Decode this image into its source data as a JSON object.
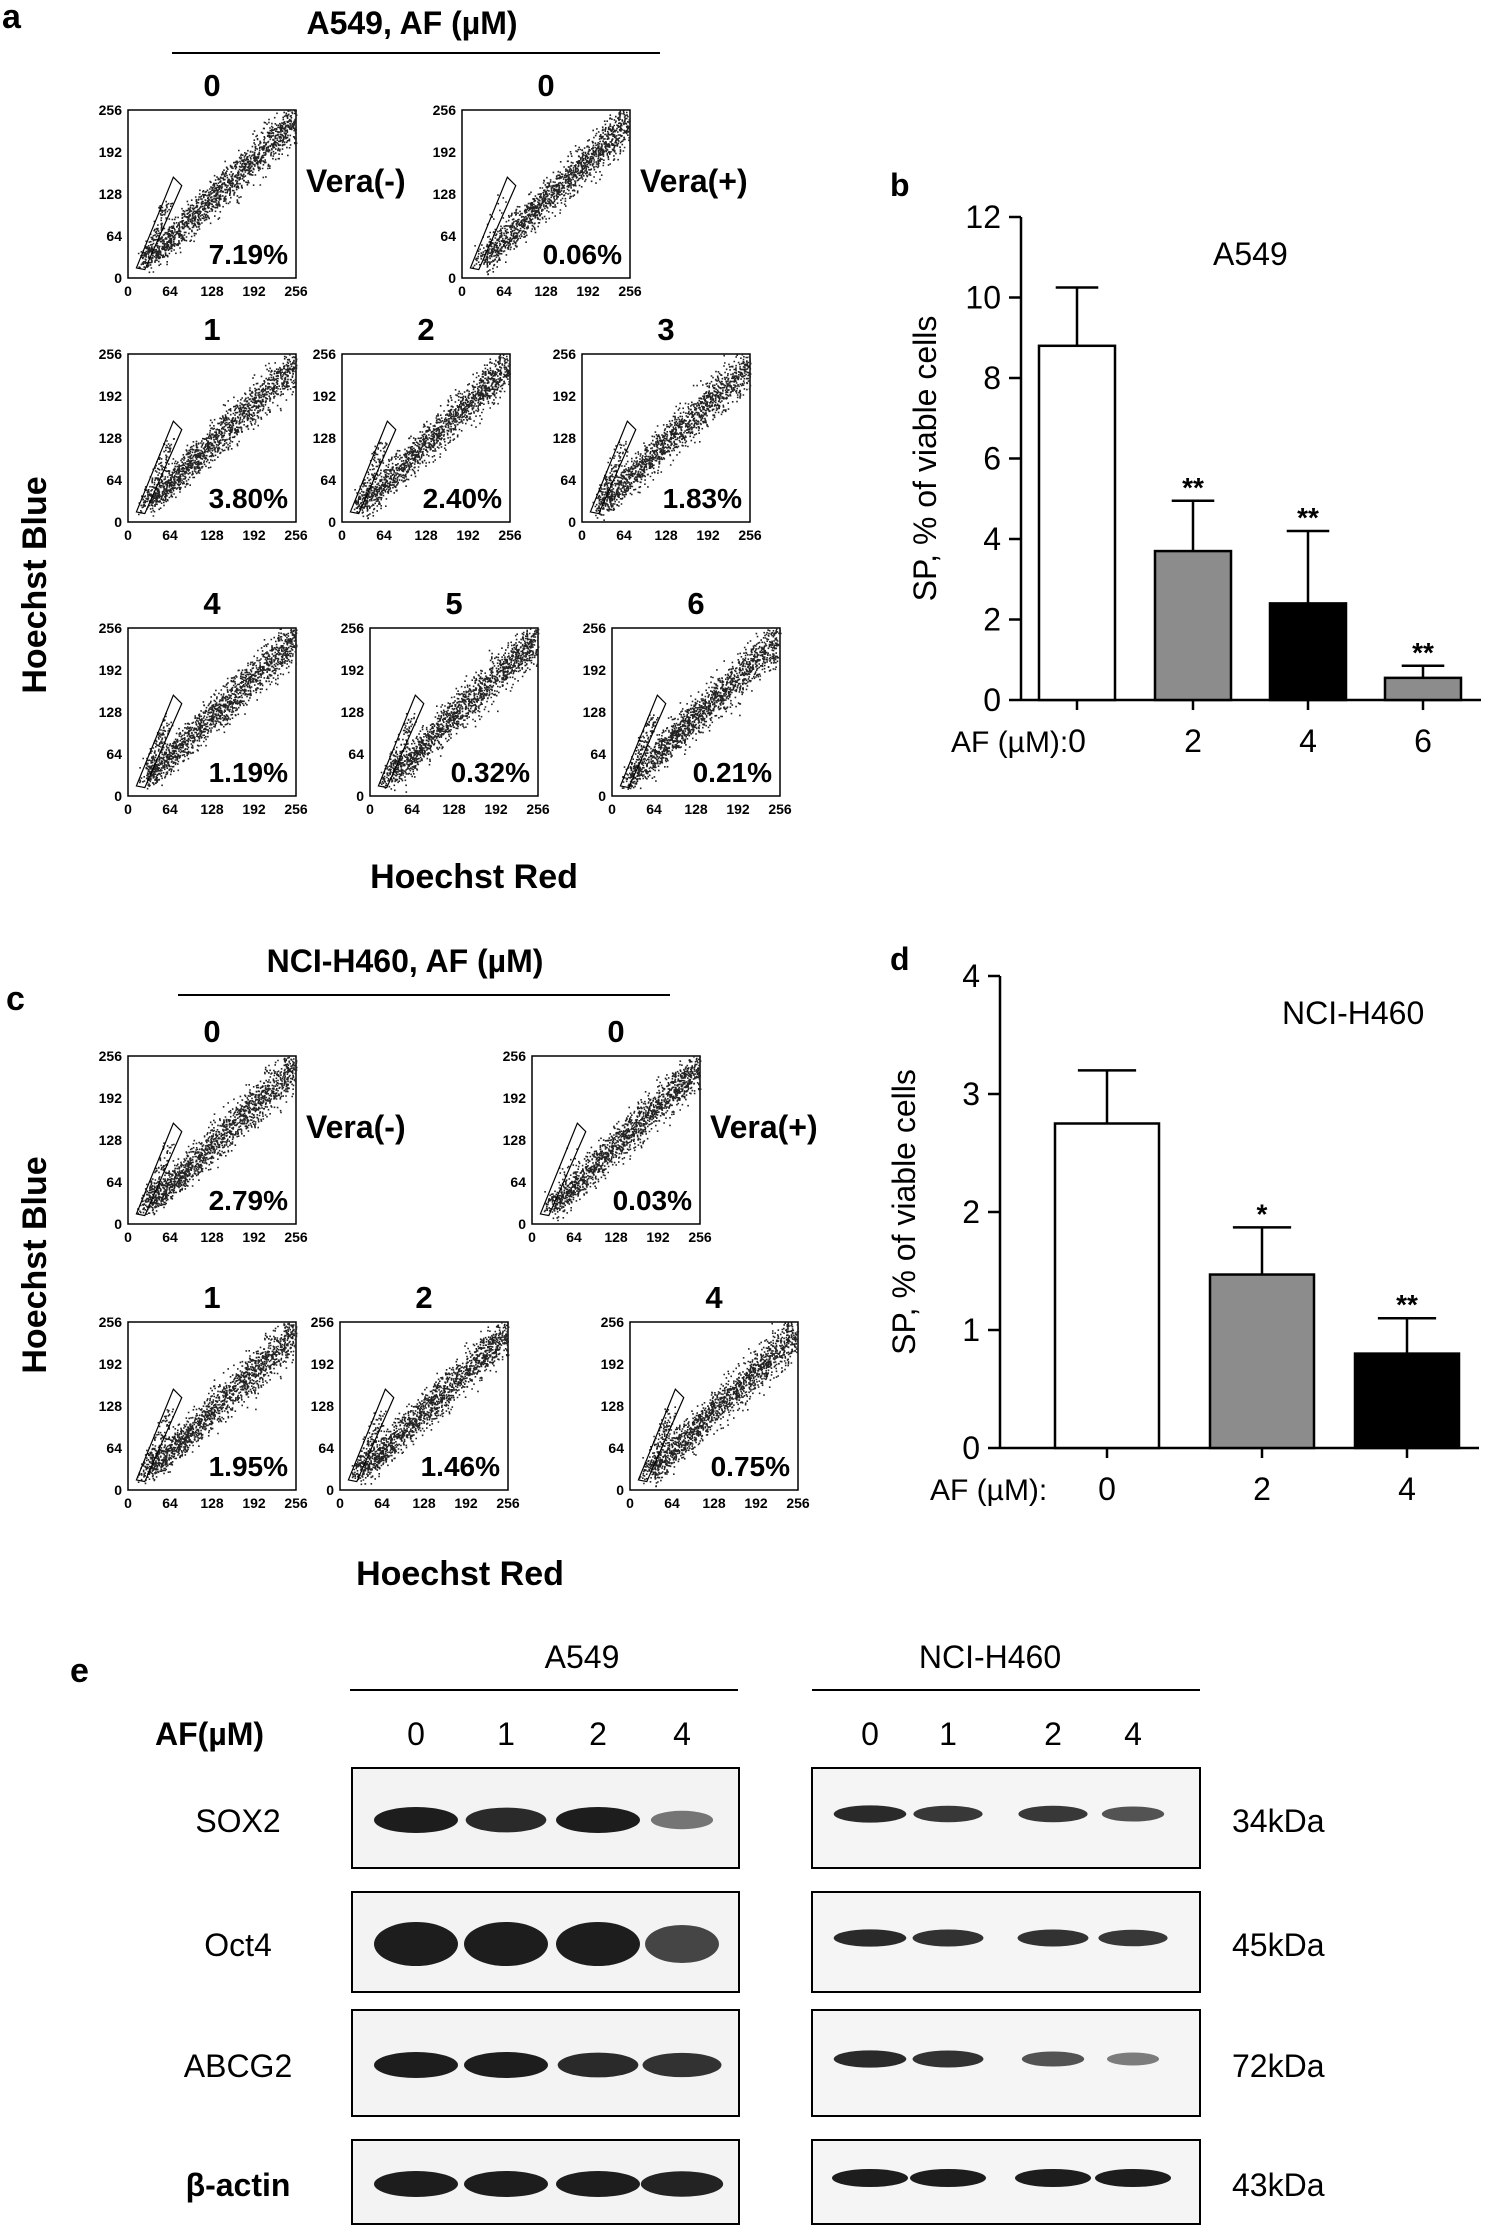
{
  "panels": {
    "a": {
      "letter": "a",
      "title": "A549, AF (µM)",
      "ylabel": "Hoechst Blue",
      "xlabel": "Hoechst Red",
      "ticks": [
        "0",
        "64",
        "128",
        "192",
        "256"
      ],
      "plots": [
        {
          "dose": "0",
          "pct": "7.19%",
          "side": "Vera(-)"
        },
        {
          "dose": "0",
          "pct": "0.06%",
          "side": "Vera(+)"
        },
        {
          "dose": "1",
          "pct": "3.80%"
        },
        {
          "dose": "2",
          "pct": "2.40%"
        },
        {
          "dose": "3",
          "pct": "1.83%"
        },
        {
          "dose": "4",
          "pct": "1.19%"
        },
        {
          "dose": "5",
          "pct": "0.32%"
        },
        {
          "dose": "6",
          "pct": "0.21%"
        }
      ]
    },
    "c": {
      "letter": "c",
      "title": "NCI-H460, AF (µM)",
      "ylabel": "Hoechst Blue",
      "xlabel": "Hoechst Red",
      "ticks": [
        "0",
        "64",
        "128",
        "192",
        "256"
      ],
      "plots": [
        {
          "dose": "0",
          "pct": "2.79%",
          "side": "Vera(-)"
        },
        {
          "dose": "0",
          "pct": "0.03%",
          "side": "Vera(+)"
        },
        {
          "dose": "1",
          "pct": "1.95%"
        },
        {
          "dose": "2",
          "pct": "1.46%"
        },
        {
          "dose": "4",
          "pct": "0.75%"
        }
      ]
    },
    "e": {
      "letter": "e",
      "groups": [
        "A549",
        "NCI-H460"
      ],
      "af_label": "AF(µM)",
      "doses": [
        "0",
        "1",
        "2",
        "4"
      ],
      "proteins": [
        {
          "name": "SOX2",
          "kda": "34kDa",
          "a549": [
            1.0,
            0.9,
            1.0,
            0.35
          ],
          "h460": [
            0.9,
            0.8,
            0.8,
            0.6
          ]
        },
        {
          "name": "Oct4",
          "kda": "45kDa",
          "a549": [
            1.0,
            1.0,
            1.0,
            0.7
          ],
          "h460": [
            0.9,
            0.85,
            0.85,
            0.8
          ]
        },
        {
          "name": "ABCG2",
          "kda": "72kDa",
          "a549": [
            1.0,
            1.0,
            0.9,
            0.85
          ],
          "h460": [
            0.9,
            0.85,
            0.6,
            0.3
          ]
        },
        {
          "name": "β-actin",
          "kda": "43kDa",
          "a549": [
            1.0,
            1.0,
            1.0,
            0.95
          ],
          "h460": [
            1.0,
            1.0,
            1.0,
            1.0
          ]
        }
      ]
    }
  },
  "chart_data": [
    {
      "panel": "b",
      "type": "bar",
      "title": "A549",
      "xlabel": "AF (µM):",
      "ylabel": "SP, % of viable cells",
      "categories": [
        "0",
        "2",
        "4",
        "6"
      ],
      "values": [
        8.8,
        3.7,
        2.4,
        0.55
      ],
      "errors": [
        1.45,
        1.25,
        1.8,
        0.3
      ],
      "significance": [
        "",
        "**",
        "**",
        "**"
      ],
      "bar_colors": [
        "#ffffff",
        "#8c8c8c",
        "#000000",
        "#8c8c8c"
      ],
      "ylim": [
        0,
        12
      ],
      "yticks": [
        0,
        2,
        4,
        6,
        8,
        10,
        12
      ]
    },
    {
      "panel": "d",
      "type": "bar",
      "title": "NCI-H460",
      "xlabel": "AF (µM):",
      "ylabel": "SP, % of viable cells",
      "categories": [
        "0",
        "2",
        "4"
      ],
      "values": [
        2.75,
        1.47,
        0.8
      ],
      "errors": [
        0.45,
        0.4,
        0.3
      ],
      "significance": [
        "",
        "*",
        "**"
      ],
      "bar_colors": [
        "#ffffff",
        "#8c8c8c",
        "#000000"
      ],
      "ylim": [
        0,
        4
      ],
      "yticks": [
        0,
        1,
        2,
        3,
        4
      ]
    }
  ]
}
